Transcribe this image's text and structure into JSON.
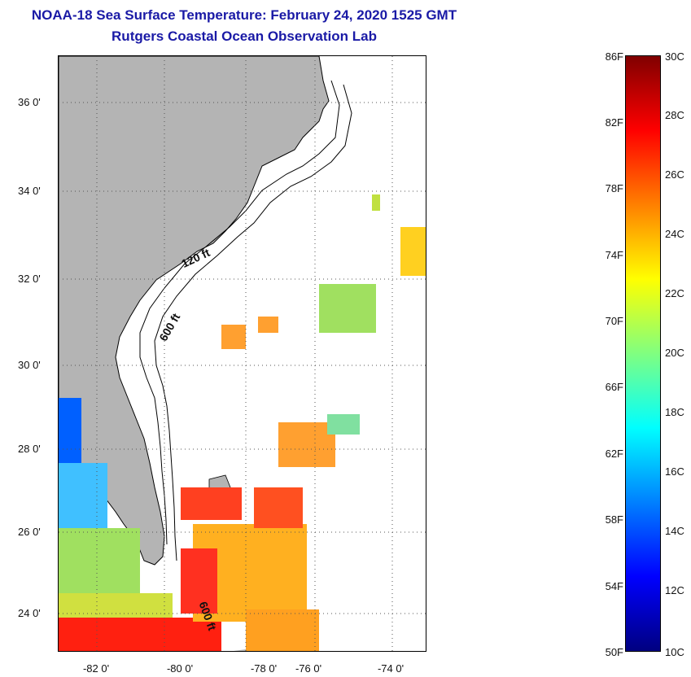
{
  "title_line1": "NOAA-18 Sea Surface Temperature:  February 24, 2020 1525 GMT",
  "title_line2": "Rutgers Coastal Ocean Observation Lab",
  "map": {
    "lat_labels": [
      "36 0'",
      "34 0'",
      "32 0'",
      "30 0'",
      "28 0'",
      "26 0'",
      "24 0'"
    ],
    "lon_labels": [
      "-82 0'",
      "-80 0'",
      "-78 0'",
      "-76 0'",
      "-74 0'"
    ],
    "contour_labels": [
      "120 ft",
      "600 ft",
      "600 ft"
    ],
    "colors": {
      "land": "#b4b4b4",
      "ocean_no_data": "#ffffff",
      "contour": "#000000"
    }
  },
  "colorbar": {
    "fahrenheit_labels": [
      "86F",
      "82F",
      "78F",
      "74F",
      "70F",
      "66F",
      "62F",
      "58F",
      "54F",
      "50F"
    ],
    "celsius_labels": [
      "30C",
      "28C",
      "26C",
      "24C",
      "22C",
      "20C",
      "18C",
      "16C",
      "14C",
      "12C",
      "10C"
    ],
    "range_f": [
      50,
      86
    ],
    "range_c": [
      10,
      30
    ],
    "palette": [
      "#000080",
      "#0000ff",
      "#0080ff",
      "#00ffff",
      "#80ff80",
      "#ffff00",
      "#ff8000",
      "#ff0000",
      "#800000"
    ]
  }
}
